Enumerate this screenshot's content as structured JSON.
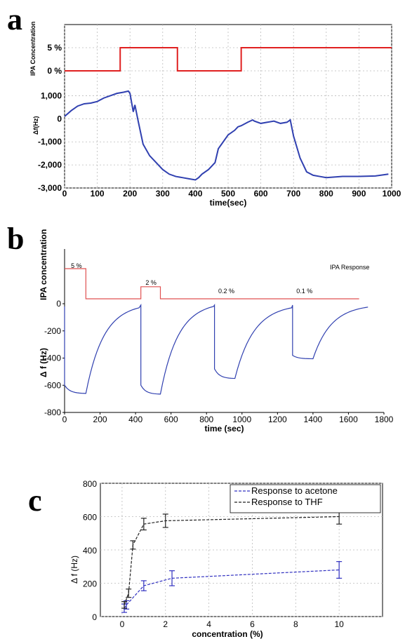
{
  "chart_data": [
    {
      "panel": "a",
      "type": "line",
      "concentration_trace": {
        "ylabel": "IPA Concentration",
        "levels": [
          "0 %",
          "5 %"
        ],
        "color": "#e02020",
        "x": [
          0,
          170,
          170,
          345,
          345,
          540,
          540,
          1000
        ],
        "y": [
          0,
          0,
          5,
          5,
          0,
          0,
          5,
          5
        ]
      },
      "frequency_trace": {
        "ylabel": "Δf(Hz)",
        "xlabel": "time(sec)",
        "color": "#3040b0",
        "xlim": [
          0,
          1000
        ],
        "ylim": [
          -3000,
          1500
        ],
        "xticks": [
          "0",
          "100",
          "200",
          "300",
          "400",
          "500",
          "600",
          "700",
          "800",
          "900",
          "1000"
        ],
        "yticks": [
          "-3,000",
          "-2,000",
          "-1,000",
          "0",
          "1,000"
        ],
        "x": [
          0,
          20,
          40,
          60,
          80,
          100,
          120,
          140,
          160,
          180,
          195,
          200,
          210,
          215,
          225,
          240,
          260,
          280,
          300,
          320,
          340,
          360,
          380,
          400,
          410,
          420,
          440,
          460,
          470,
          480,
          500,
          520,
          530,
          540,
          560,
          575,
          580,
          600,
          620,
          640,
          660,
          680,
          690,
          700,
          720,
          740,
          760,
          780,
          800,
          850,
          900,
          950,
          990
        ],
        "y": [
          100,
          350,
          550,
          650,
          680,
          750,
          900,
          1000,
          1100,
          1150,
          1200,
          1100,
          300,
          600,
          -100,
          -1100,
          -1600,
          -1900,
          -2200,
          -2400,
          -2500,
          -2550,
          -2600,
          -2650,
          -2550,
          -2400,
          -2200,
          -1900,
          -1300,
          -1100,
          -700,
          -500,
          -350,
          -300,
          -150,
          -50,
          -100,
          -200,
          -150,
          -100,
          -200,
          -150,
          -50,
          -750,
          -1700,
          -2300,
          -2450,
          -2500,
          -2550,
          -2500,
          -2500,
          -2480,
          -2400
        ]
      }
    },
    {
      "panel": "b",
      "type": "line",
      "legend_text": "IPA Response",
      "concentration_trace": {
        "ylabel": "IPA concentration",
        "color": "#e05050",
        "x": [
          0,
          120,
          120,
          430,
          430,
          540,
          540,
          1660
        ],
        "y": [
          5,
          5,
          0,
          0,
          2,
          2,
          0,
          0
        ],
        "step_labels": [
          {
            "text": "5 %",
            "x": 60
          },
          {
            "text": "2 %",
            "x": 480
          },
          {
            "text": "0.2 %",
            "x": 890
          },
          {
            "text": "0.1 %",
            "x": 1330
          }
        ]
      },
      "frequency_trace": {
        "ylabel": "Δ f (Hz)",
        "xlabel": "time (sec)",
        "color": "#3040b0",
        "xlim": [
          0,
          1800
        ],
        "ylim": [
          -800,
          0
        ],
        "xticks": [
          "0",
          "200",
          "400",
          "600",
          "800",
          "1000",
          "1200",
          "1400",
          "1600",
          "1800"
        ],
        "yticks": [
          "-800",
          "-600",
          "-400",
          "-200",
          "0"
        ],
        "cycles": [
          {
            "drop_at": 0,
            "drop_to": -600,
            "bottom": -660,
            "release_at": 120,
            "recover_to": -30,
            "recover_end": 420
          },
          {
            "drop_at": 430,
            "drop_to": -600,
            "bottom": -665,
            "release_at": 540,
            "recover_to": -20,
            "recover_end": 840
          },
          {
            "drop_at": 845,
            "drop_to": -480,
            "bottom": -550,
            "release_at": 960,
            "recover_to": -30,
            "recover_end": 1280
          },
          {
            "drop_at": 1285,
            "drop_to": -380,
            "bottom": -405,
            "release_at": 1400,
            "recover_to": -25,
            "recover_end": 1710
          }
        ]
      }
    },
    {
      "panel": "c",
      "type": "line",
      "xlabel": "concentration (%)",
      "ylabel": "Δ f (Hz)",
      "xlim": [
        -1,
        12
      ],
      "ylim": [
        0,
        800
      ],
      "xticks": [
        "0",
        "2",
        "4",
        "6",
        "8",
        "10"
      ],
      "yticks": [
        "0",
        "200",
        "400",
        "600",
        "800"
      ],
      "grid": true,
      "legend_position": "top-right",
      "series": [
        {
          "name": "Response to acetone",
          "color": "#3030c0",
          "x": [
            0.1,
            0.2,
            1,
            2.3,
            10
          ],
          "y": [
            50,
            70,
            185,
            230,
            280
          ],
          "err": [
            25,
            25,
            30,
            45,
            50
          ]
        },
        {
          "name": "Response to THF",
          "color": "#222222",
          "x": [
            0.1,
            0.3,
            0.5,
            1,
            2,
            10
          ],
          "y": [
            70,
            140,
            430,
            555,
            575,
            600
          ],
          "err": [
            20,
            25,
            25,
            35,
            40,
            45
          ]
        }
      ]
    }
  ],
  "panel_letters": [
    "a",
    "b",
    "c"
  ]
}
